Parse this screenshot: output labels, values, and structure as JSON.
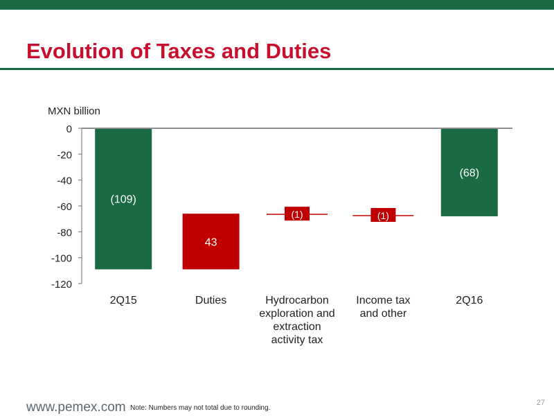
{
  "header": {
    "title": "Evolution of Taxes and Duties"
  },
  "chart_data": {
    "type": "bar",
    "subtype": "waterfall",
    "unit_label": "MXN billion",
    "ylim": [
      -120,
      0
    ],
    "yticks": [
      0,
      -20,
      -40,
      -60,
      -80,
      -100,
      -120
    ],
    "grid": false,
    "legend": "none",
    "categories": [
      [
        "2Q15"
      ],
      [
        "Duties"
      ],
      [
        "Hydrocarbon",
        "exploration and",
        "extraction",
        "activity tax"
      ],
      [
        "Income tax",
        "and other"
      ],
      [
        "2Q16"
      ]
    ],
    "bars": [
      {
        "start": 0,
        "end": -109,
        "label": "(109)",
        "kind": "total"
      },
      {
        "start": -109,
        "end": -66,
        "label": "43",
        "kind": "change"
      },
      {
        "start": -66,
        "end": -67,
        "label": "(1)",
        "kind": "change"
      },
      {
        "start": -67,
        "end": -68,
        "label": "(1)",
        "kind": "change"
      },
      {
        "start": 0,
        "end": -68,
        "label": "(68)",
        "kind": "total"
      }
    ],
    "colors": {
      "total": "#1a6a44",
      "change": "#c00000",
      "axis": "#8c8c8c"
    }
  },
  "footer": {
    "website": "www.pemex.com",
    "note": "Note: Numbers may not total due to rounding.",
    "page": "27"
  }
}
